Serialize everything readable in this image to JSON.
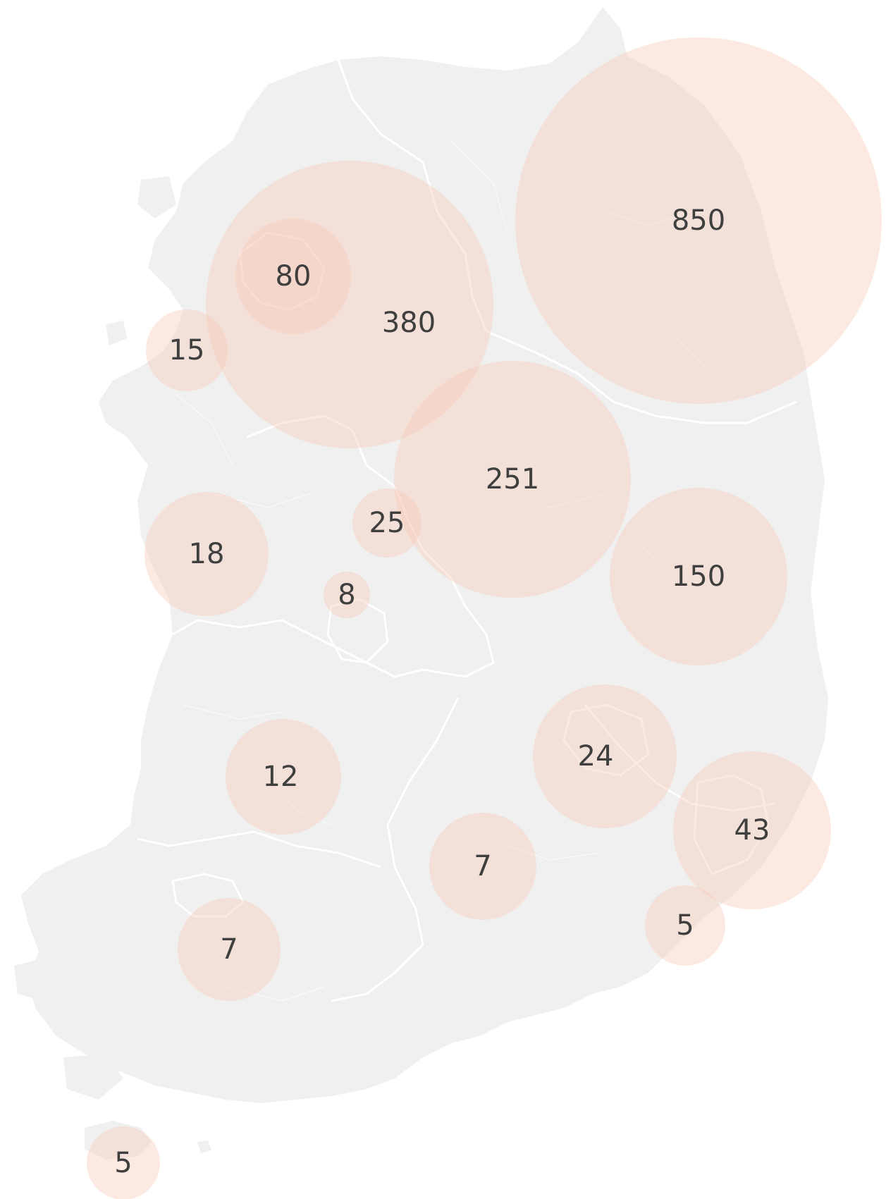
{
  "map": {
    "type": "bubble-map",
    "colors": {
      "land": "#f0f0f0",
      "borders": "#ffffff",
      "bubble": "#f8c9b4",
      "label": "#3f3f3f"
    },
    "bubbles": [
      {
        "id": "gangwon",
        "value": 850,
        "label": "850"
      },
      {
        "id": "gyeonggi",
        "value": 380,
        "label": "380"
      },
      {
        "id": "chungbuk",
        "value": 251,
        "label": "251"
      },
      {
        "id": "gyeongbuk",
        "value": 150,
        "label": "150"
      },
      {
        "id": "incheon",
        "value": 80,
        "label": "80"
      },
      {
        "id": "ulsan-busan",
        "value": 43,
        "label": "43"
      },
      {
        "id": "sejong",
        "value": 25,
        "label": "25"
      },
      {
        "id": "daegu",
        "value": 24,
        "label": "24"
      },
      {
        "id": "chungnam",
        "value": 18,
        "label": "18"
      },
      {
        "id": "west-islands",
        "value": 15,
        "label": "15"
      },
      {
        "id": "jeonbuk",
        "value": 12,
        "label": "12"
      },
      {
        "id": "daejeon",
        "value": 8,
        "label": "8"
      },
      {
        "id": "gyeongnam",
        "value": 7,
        "label": "7"
      },
      {
        "id": "jeonnam",
        "value": 7,
        "label": "7"
      },
      {
        "id": "busan-south",
        "value": 5,
        "label": "5"
      },
      {
        "id": "jeju",
        "value": 5,
        "label": "5"
      }
    ]
  }
}
